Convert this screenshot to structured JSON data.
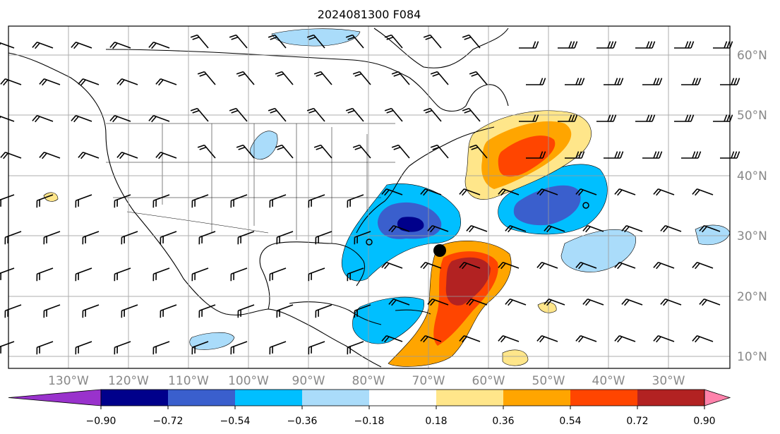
{
  "title": "2024081300 F084",
  "lon_labels": [
    "130°W",
    "120°W",
    "110°W",
    "100°W",
    "90°W",
    "80°W",
    "70°W",
    "60°W",
    "50°W",
    "40°W",
    "30°W"
  ],
  "lat_labels": [
    "60°N",
    "50°N",
    "40°N",
    "30°N",
    "20°N",
    "10°N"
  ],
  "colorbar": {
    "tick_labels": [
      "−0.90",
      "−0.72",
      "−0.54",
      "−0.36",
      "−0.18",
      "0.18",
      "0.36",
      "0.54",
      "0.72",
      "0.90"
    ],
    "colors": [
      "#9932cc",
      "#00008b",
      "#3a5fcd",
      "#00bfff",
      "#aadcfa",
      "#ffffff",
      "#ffe68a",
      "#ffa500",
      "#ff4500",
      "#b22222",
      "#ff82ab"
    ]
  },
  "storm_marker": {
    "label": "storm-center",
    "lon": -71.0,
    "lat": 27.5
  }
}
